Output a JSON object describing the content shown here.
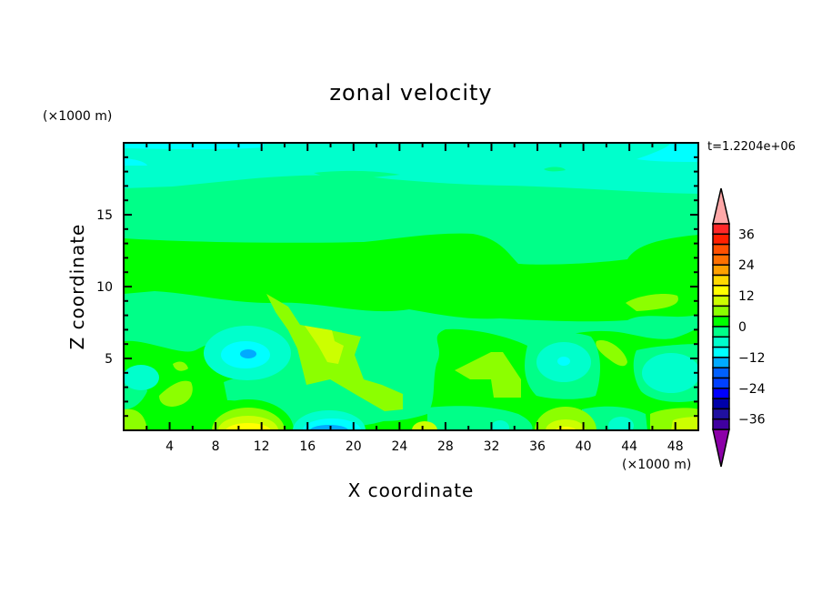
{
  "chart_data": {
    "type": "heatmap",
    "subtype": "filled-contour",
    "title": "zonal velocity",
    "xlabel": "X coordinate",
    "ylabel": "Z coordinate",
    "x_unit": "(×1000 m)",
    "y_unit": "(×1000 m)",
    "time_label": "t=1.2204e+06",
    "xlim": [
      0,
      50
    ],
    "ylim": [
      0,
      20
    ],
    "x_ticks": [
      4,
      8,
      12,
      16,
      20,
      24,
      28,
      32,
      36,
      40,
      44,
      48
    ],
    "x_minor_step": 2,
    "y_ticks": [
      5,
      10,
      15
    ],
    "y_minor_step": 1,
    "colorbar": {
      "levels_min": -40,
      "levels_max": 40,
      "step": 4,
      "tick_labels": [
        "36",
        "24",
        "12",
        "0",
        "−12",
        "−24",
        "−36"
      ],
      "tick_values": [
        36,
        24,
        12,
        0,
        -12,
        -24,
        -36
      ],
      "over_color": "#FFA8A8",
      "under_color": "#8C00A8",
      "colors_top_to_bottom": [
        "#FF2828",
        "#FF2000",
        "#FF5000",
        "#FF7000",
        "#FFA000",
        "#FFD800",
        "#FFFF00",
        "#CCFF00",
        "#8CFF00",
        "#00FF00",
        "#00FF88",
        "#00FFCC",
        "#00FFFF",
        "#00AAFF",
        "#0060FF",
        "#0040FF",
        "#0000FF",
        "#0000AA",
        "#2010A0",
        "#4000A0"
      ]
    },
    "field_summary": {
      "upper_layer_range": [
        -8,
        0
      ],
      "mid_layer_range": [
        0,
        4
      ],
      "lower_features": [
        {
          "x": 11,
          "z": 5.3,
          "value_range": [
            -16,
            -12
          ]
        },
        {
          "x": 11,
          "z": 0.2,
          "value_range": [
            12,
            16
          ]
        },
        {
          "x": 18,
          "z": 0.2,
          "value_range": [
            -16,
            -12
          ]
        },
        {
          "x": 38,
          "z": 0.2,
          "value_range": [
            12,
            16
          ]
        },
        {
          "x": 38,
          "z": 4.8,
          "value_range": [
            -12,
            -8
          ]
        }
      ]
    }
  }
}
